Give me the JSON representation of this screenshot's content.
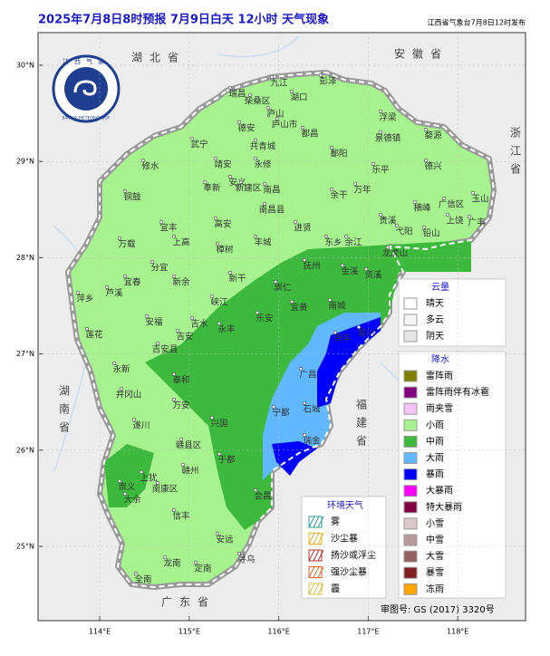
{
  "header": {
    "title": "2025年7月8日8时预报 7月9日白天 12小时 天气现象",
    "issuer": "江西省气象台7月8日12时发布"
  },
  "logo": {
    "name": "江西气象",
    "english": "JIANGXI METEOROLOGY"
  },
  "map": {
    "lat_ticks": [
      {
        "value": 30,
        "label": "30°N"
      },
      {
        "value": 29,
        "label": "29°N"
      },
      {
        "value": 28,
        "label": "28°N"
      },
      {
        "value": 27,
        "label": "27°N"
      },
      {
        "value": 26,
        "label": "26°N"
      },
      {
        "value": 25,
        "label": "25°N"
      }
    ],
    "lon_ticks": [
      {
        "value": 114,
        "label": "114°E"
      },
      {
        "value": 115,
        "label": "115°E"
      },
      {
        "value": 116,
        "label": "116°E"
      },
      {
        "value": 117,
        "label": "117°E"
      },
      {
        "value": 118,
        "label": "118°E"
      }
    ],
    "regions": [
      "湖北省",
      "安徽省",
      "浙江省",
      "湖南省",
      "福建省",
      "广东省"
    ]
  },
  "cities": [
    "九江",
    "彭泽",
    "瑞昌",
    "柴桑区",
    "湖口",
    "庐山",
    "庐山市",
    "浮梁",
    "德安",
    "都昌",
    "景德镇",
    "婺源",
    "武宁",
    "共青城",
    "鄱阳",
    "修水",
    "靖安",
    "永修",
    "乐平",
    "德兴",
    "安义",
    "奉新",
    "新建区",
    "南昌",
    "余干",
    "万年",
    "玉山",
    "铜鼓",
    "宜丰",
    "高安",
    "南昌县",
    "进贤",
    "东乡",
    "余江",
    "贵溪",
    "横峰",
    "广信区",
    "上饶",
    "广丰",
    "铅山",
    "弋阳",
    "万载",
    "上高",
    "樟树",
    "丰城",
    "抚州",
    "金溪",
    "龙虎山",
    "资溪",
    "分宜",
    "宜春",
    "新余",
    "萍乡",
    "芦溪",
    "新干",
    "崇仁",
    "宜黄",
    "南城",
    "黎川",
    "南丰",
    "峡江",
    "乐安",
    "安福",
    "吉水",
    "永丰",
    "莲花",
    "吉安",
    "吉安县",
    "广昌",
    "泰和",
    "永新",
    "井冈山",
    "万安",
    "石城",
    "宁都",
    "兴国",
    "遂川",
    "瑞金",
    "赣县区",
    "于都",
    "上犹",
    "赣州",
    "会昌",
    "崇义",
    "大余",
    "南康区",
    "信丰",
    "安远",
    "寻乌",
    "全南",
    "龙南",
    "定南"
  ],
  "legend": {
    "cloud": {
      "title": "云量",
      "items": [
        {
          "label": "晴天",
          "color": "#ffffff"
        },
        {
          "label": "多云",
          "color": "#f4f4f4"
        },
        {
          "label": "阴天",
          "color": "#e6e6e6"
        }
      ]
    },
    "precip": {
      "title": "降水",
      "items": [
        {
          "label": "雷阵雨",
          "color": "#808000"
        },
        {
          "label": "雷阵雨伴有冰雹",
          "color": "#800080"
        },
        {
          "label": "雨夹雪",
          "color": "#f4c2f4"
        },
        {
          "label": "小雨",
          "color": "#a6f28f"
        },
        {
          "label": "中雨",
          "color": "#3dba3d"
        },
        {
          "label": "大雨",
          "color": "#61b8ff"
        },
        {
          "label": "暴雨",
          "color": "#0000fe"
        },
        {
          "label": "大暴雨",
          "color": "#fa00fa"
        },
        {
          "label": "特大暴雨",
          "color": "#800040"
        },
        {
          "label": "小雪",
          "color": "#d8c8c8"
        },
        {
          "label": "中雪",
          "color": "#b89a9a"
        },
        {
          "label": "大雪",
          "color": "#966060"
        },
        {
          "label": "暴雪",
          "color": "#802020"
        },
        {
          "label": "冻雨",
          "color": "#ffa500"
        }
      ]
    },
    "env": {
      "title": "环境天气",
      "items": [
        {
          "label": "雾",
          "color": "#2e9ea0"
        },
        {
          "label": "沙尘暴",
          "color": "#e0b020"
        },
        {
          "label": "扬沙或浮尘",
          "color": "#b03030"
        },
        {
          "label": "强沙尘暴",
          "color": "#e06020"
        },
        {
          "label": "霾",
          "color": "#d0c040"
        }
      ]
    }
  },
  "approval": "审图号: GS (2017) 3320号"
}
